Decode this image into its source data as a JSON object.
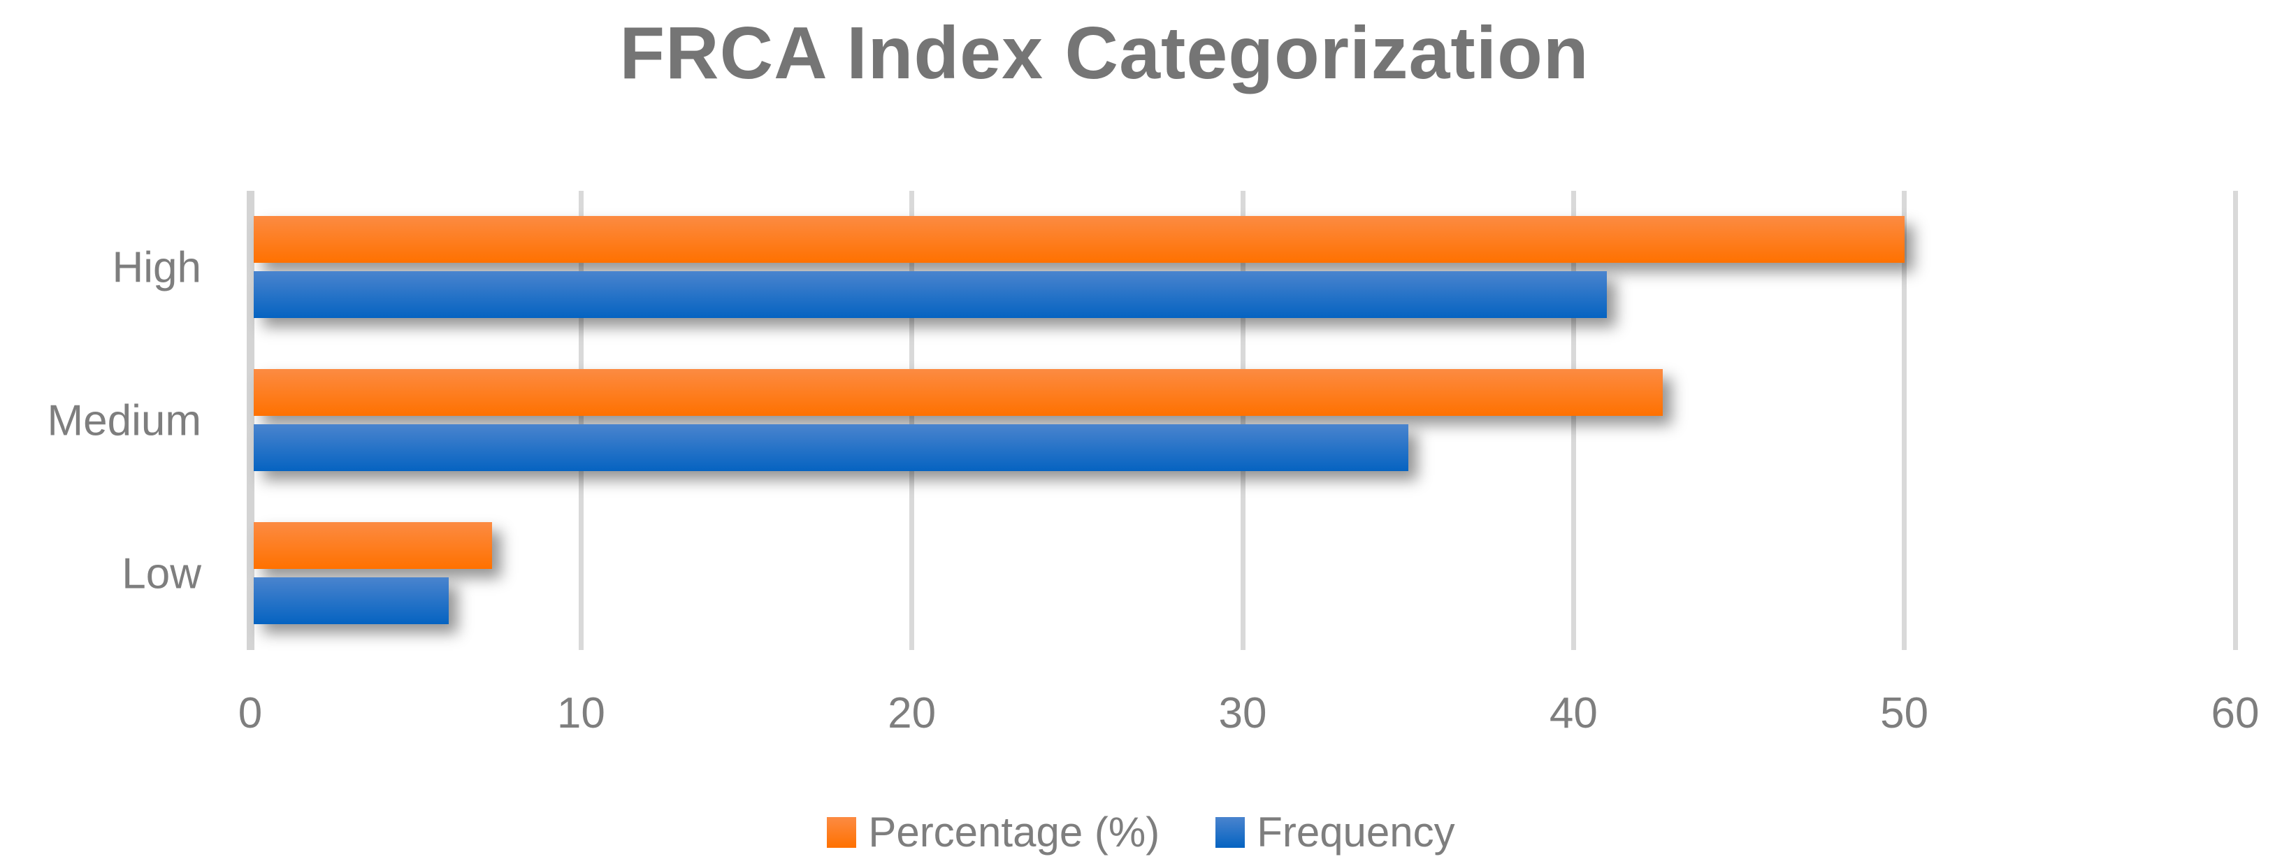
{
  "chart_data": {
    "type": "bar",
    "orientation": "horizontal",
    "title": "FRCA Index Categorization",
    "categories": [
      "High",
      "Medium",
      "Low"
    ],
    "series": [
      {
        "name": "Percentage (%)",
        "values": [
          50,
          42.7,
          7.3
        ],
        "color_top": "#FC8B43",
        "color_bottom": "#FF7100"
      },
      {
        "name": "Frequency",
        "values": [
          41,
          35,
          6
        ],
        "color_top": "#4A84CE",
        "color_bottom": "#0563C1"
      }
    ],
    "xlim": [
      0,
      60
    ],
    "xticks": [
      0,
      10,
      20,
      30,
      40,
      50,
      60
    ],
    "grid": true,
    "legend_position": "bottom",
    "colors": {
      "title_text": "#757575",
      "label_text": "#7E7E7E",
      "gridline": "#D9D9D9",
      "axis_line": "#D4D4D4",
      "background": "#FFFFFF"
    }
  }
}
